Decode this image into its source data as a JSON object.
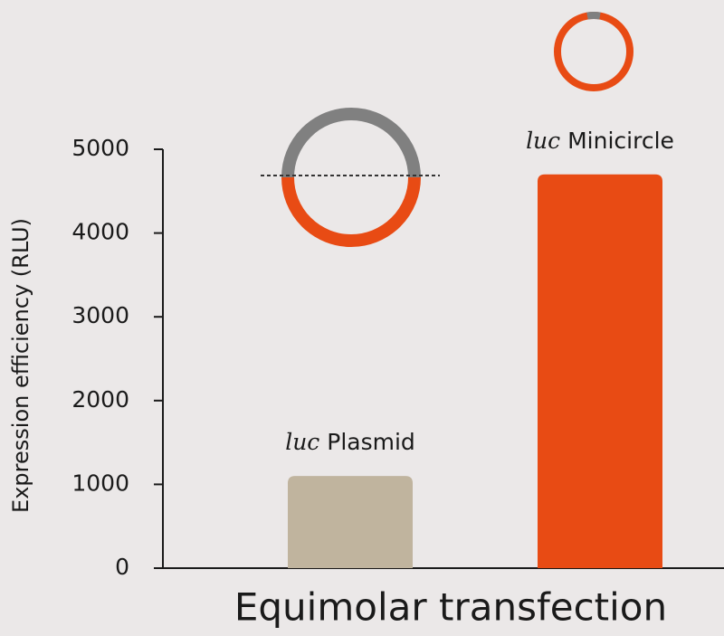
{
  "chart_data": {
    "type": "bar",
    "xlabel": "Equimolar transfection",
    "ylabel": "Expression efficiency (RLU)",
    "categories": [
      "luc Plasmid",
      "luc Minicircle"
    ],
    "values": [
      1100,
      4700
    ],
    "colors": [
      "#c0b49e",
      "#e84b14"
    ],
    "ylim": [
      0,
      5000
    ],
    "yticks": [
      0,
      1000,
      2000,
      3000,
      4000,
      5000
    ],
    "grid": false
  }
}
